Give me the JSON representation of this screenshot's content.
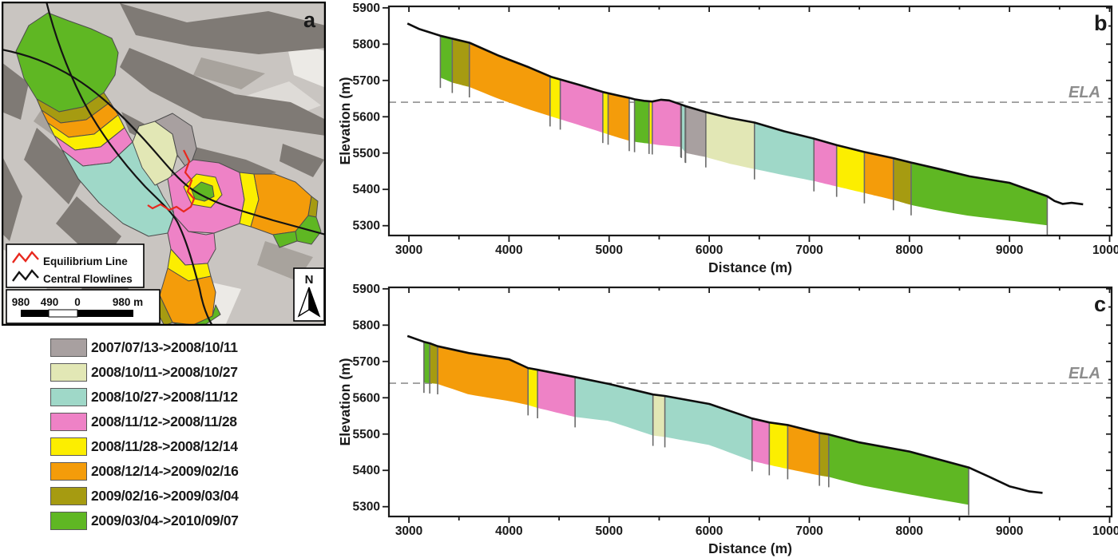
{
  "panel_a": {
    "label": "a",
    "map_legend": {
      "equilibrium_line_label": "Equilibrium Line",
      "central_flowlines_label": "Central Flowlines",
      "equilibrium_line_color": "#e8281e",
      "flowline_color": "#141414"
    },
    "scale_bar": {
      "labels": [
        "980",
        "490",
        "0",
        "980 m"
      ]
    },
    "north_arrow_label": "N"
  },
  "periods": [
    {
      "label": "2007/07/13->2008/10/11",
      "color": "#a8a0a0"
    },
    {
      "label": "2008/10/11->2008/10/27",
      "color": "#e2e7b5"
    },
    {
      "label": "2008/10/27->2008/11/12",
      "color": "#9fd8c8"
    },
    {
      "label": "2008/11/12->2008/11/28",
      "color": "#ee82c6"
    },
    {
      "label": "2008/11/28->2008/12/14",
      "color": "#fcee00"
    },
    {
      "label": "2008/12/14->2009/02/16",
      "color": "#f49c0a"
    },
    {
      "label": "2009/02/16->2009/03/04",
      "color": "#a69b11"
    },
    {
      "label": "2009/03/04->2010/09/07",
      "color": "#5fb723"
    }
  ],
  "chart_data": [
    {
      "id": "b",
      "type": "area",
      "panel_label": "b",
      "xlabel": "Distance (m)",
      "ylabel": "Elevation (m)",
      "xlim": [
        2800,
        10020
      ],
      "ylim": [
        5273,
        5904
      ],
      "xticks": [
        3000,
        4000,
        5000,
        6000,
        7000,
        8000,
        9000,
        10000
      ],
      "yticks": [
        5300,
        5400,
        5500,
        5600,
        5700,
        5800,
        5900
      ],
      "x_minor_step": 500,
      "y_minor_step": 50,
      "ela": {
        "label": "ELA",
        "elevation": 5640
      },
      "surface": [
        [
          2985,
          5857
        ],
        [
          3100,
          5842
        ],
        [
          3314,
          5823
        ],
        [
          3604,
          5804
        ],
        [
          3900,
          5768
        ],
        [
          4200,
          5736
        ],
        [
          4420,
          5710
        ],
        [
          4700,
          5688
        ],
        [
          4940,
          5668
        ],
        [
          5100,
          5658
        ],
        [
          5201,
          5652
        ],
        [
          5254,
          5648
        ],
        [
          5350,
          5644
        ],
        [
          5430,
          5642
        ],
        [
          5520,
          5647
        ],
        [
          5600,
          5645
        ],
        [
          5716,
          5634
        ],
        [
          5768,
          5629
        ],
        [
          5966,
          5613
        ],
        [
          6200,
          5597
        ],
        [
          6452,
          5584
        ],
        [
          6750,
          5560
        ],
        [
          7046,
          5540
        ],
        [
          7273,
          5522
        ],
        [
          7550,
          5503
        ],
        [
          7840,
          5486
        ],
        [
          8017,
          5474
        ],
        [
          8300,
          5456
        ],
        [
          8600,
          5436
        ],
        [
          9000,
          5418
        ],
        [
          9377,
          5381
        ],
        [
          9450,
          5368
        ],
        [
          9530,
          5360
        ],
        [
          9620,
          5363
        ],
        [
          9735,
          5359
        ]
      ],
      "bed": [
        [
          3314,
          5708
        ],
        [
          3433,
          5694
        ],
        [
          3604,
          5682
        ],
        [
          3900,
          5649
        ],
        [
          4200,
          5620
        ],
        [
          4420,
          5601
        ],
        [
          4700,
          5577
        ],
        [
          4940,
          5556
        ],
        [
          5100,
          5542
        ],
        [
          5201,
          5534
        ],
        [
          5254,
          5531
        ],
        [
          5399,
          5526
        ],
        [
          5500,
          5522
        ],
        [
          5716,
          5517
        ],
        [
          5768,
          5500
        ],
        [
          5966,
          5489
        ],
        [
          6200,
          5471
        ],
        [
          6452,
          5456
        ],
        [
          6750,
          5439
        ],
        [
          7046,
          5423
        ],
        [
          7273,
          5408
        ],
        [
          7550,
          5390
        ],
        [
          7840,
          5371
        ],
        [
          8017,
          5357
        ],
        [
          8300,
          5341
        ],
        [
          8600,
          5327
        ],
        [
          9000,
          5314
        ],
        [
          9377,
          5301
        ]
      ],
      "segments": [
        [
          3314,
          3433,
          7
        ],
        [
          3433,
          3604,
          6
        ],
        [
          3604,
          4410,
          5
        ],
        [
          4410,
          4512,
          4
        ],
        [
          4512,
          4937,
          3
        ],
        [
          4937,
          4990,
          4
        ],
        [
          4990,
          5201,
          5
        ],
        [
          5254,
          5399,
          7
        ],
        [
          5399,
          5431,
          4
        ],
        [
          5431,
          5716,
          3
        ],
        [
          5722,
          5760,
          2
        ],
        [
          5764,
          5966,
          0
        ],
        [
          5966,
          6452,
          1
        ],
        [
          6452,
          7046,
          2
        ],
        [
          7046,
          7273,
          3
        ],
        [
          7273,
          7550,
          4
        ],
        [
          7550,
          7840,
          5
        ],
        [
          7840,
          8017,
          6
        ],
        [
          8017,
          9377,
          7
        ]
      ]
    },
    {
      "id": "c",
      "type": "area",
      "panel_label": "c",
      "xlabel": "Distance (m)",
      "ylabel": "Elevation (m)",
      "xlim": [
        2800,
        10020
      ],
      "ylim": [
        5273,
        5904
      ],
      "xticks": [
        3000,
        4000,
        5000,
        6000,
        7000,
        8000,
        9000,
        10000
      ],
      "yticks": [
        5300,
        5400,
        5500,
        5600,
        5700,
        5800,
        5900
      ],
      "x_minor_step": 500,
      "y_minor_step": 50,
      "ela": {
        "label": "ELA",
        "elevation": 5640
      },
      "surface": [
        [
          2985,
          5770
        ],
        [
          3150,
          5754
        ],
        [
          3208,
          5750
        ],
        [
          3287,
          5742
        ],
        [
          3600,
          5723
        ],
        [
          4000,
          5706
        ],
        [
          4190,
          5682
        ],
        [
          4285,
          5677
        ],
        [
          4660,
          5657
        ],
        [
          5000,
          5638
        ],
        [
          5438,
          5609
        ],
        [
          5557,
          5605
        ],
        [
          6000,
          5583
        ],
        [
          6428,
          5543
        ],
        [
          6600,
          5532
        ],
        [
          6784,
          5525
        ],
        [
          7101,
          5503
        ],
        [
          7194,
          5499
        ],
        [
          7500,
          5477
        ],
        [
          8000,
          5452
        ],
        [
          8592,
          5408
        ],
        [
          8800,
          5382
        ],
        [
          9000,
          5356
        ],
        [
          9200,
          5342
        ],
        [
          9330,
          5338
        ]
      ],
      "bed": [
        [
          3150,
          5642
        ],
        [
          3287,
          5638
        ],
        [
          3600,
          5609
        ],
        [
          4000,
          5591
        ],
        [
          4190,
          5580
        ],
        [
          4285,
          5572
        ],
        [
          4660,
          5547
        ],
        [
          5000,
          5536
        ],
        [
          5438,
          5496
        ],
        [
          5557,
          5492
        ],
        [
          6000,
          5470
        ],
        [
          6428,
          5426
        ],
        [
          6600,
          5415
        ],
        [
          6784,
          5404
        ],
        [
          7101,
          5386
        ],
        [
          7194,
          5382
        ],
        [
          7500,
          5360
        ],
        [
          8000,
          5334
        ],
        [
          8592,
          5305
        ]
      ],
      "segments": [
        [
          3150,
          3208,
          7
        ],
        [
          3208,
          3287,
          6
        ],
        [
          3287,
          4190,
          5
        ],
        [
          4190,
          4285,
          4
        ],
        [
          4285,
          4660,
          3
        ],
        [
          4660,
          5438,
          2
        ],
        [
          5438,
          5557,
          1
        ],
        [
          5557,
          6428,
          2
        ],
        [
          6428,
          6600,
          3
        ],
        [
          6600,
          6784,
          4
        ],
        [
          6784,
          7101,
          5
        ],
        [
          7101,
          7194,
          6
        ],
        [
          7194,
          8592,
          7
        ]
      ]
    }
  ]
}
